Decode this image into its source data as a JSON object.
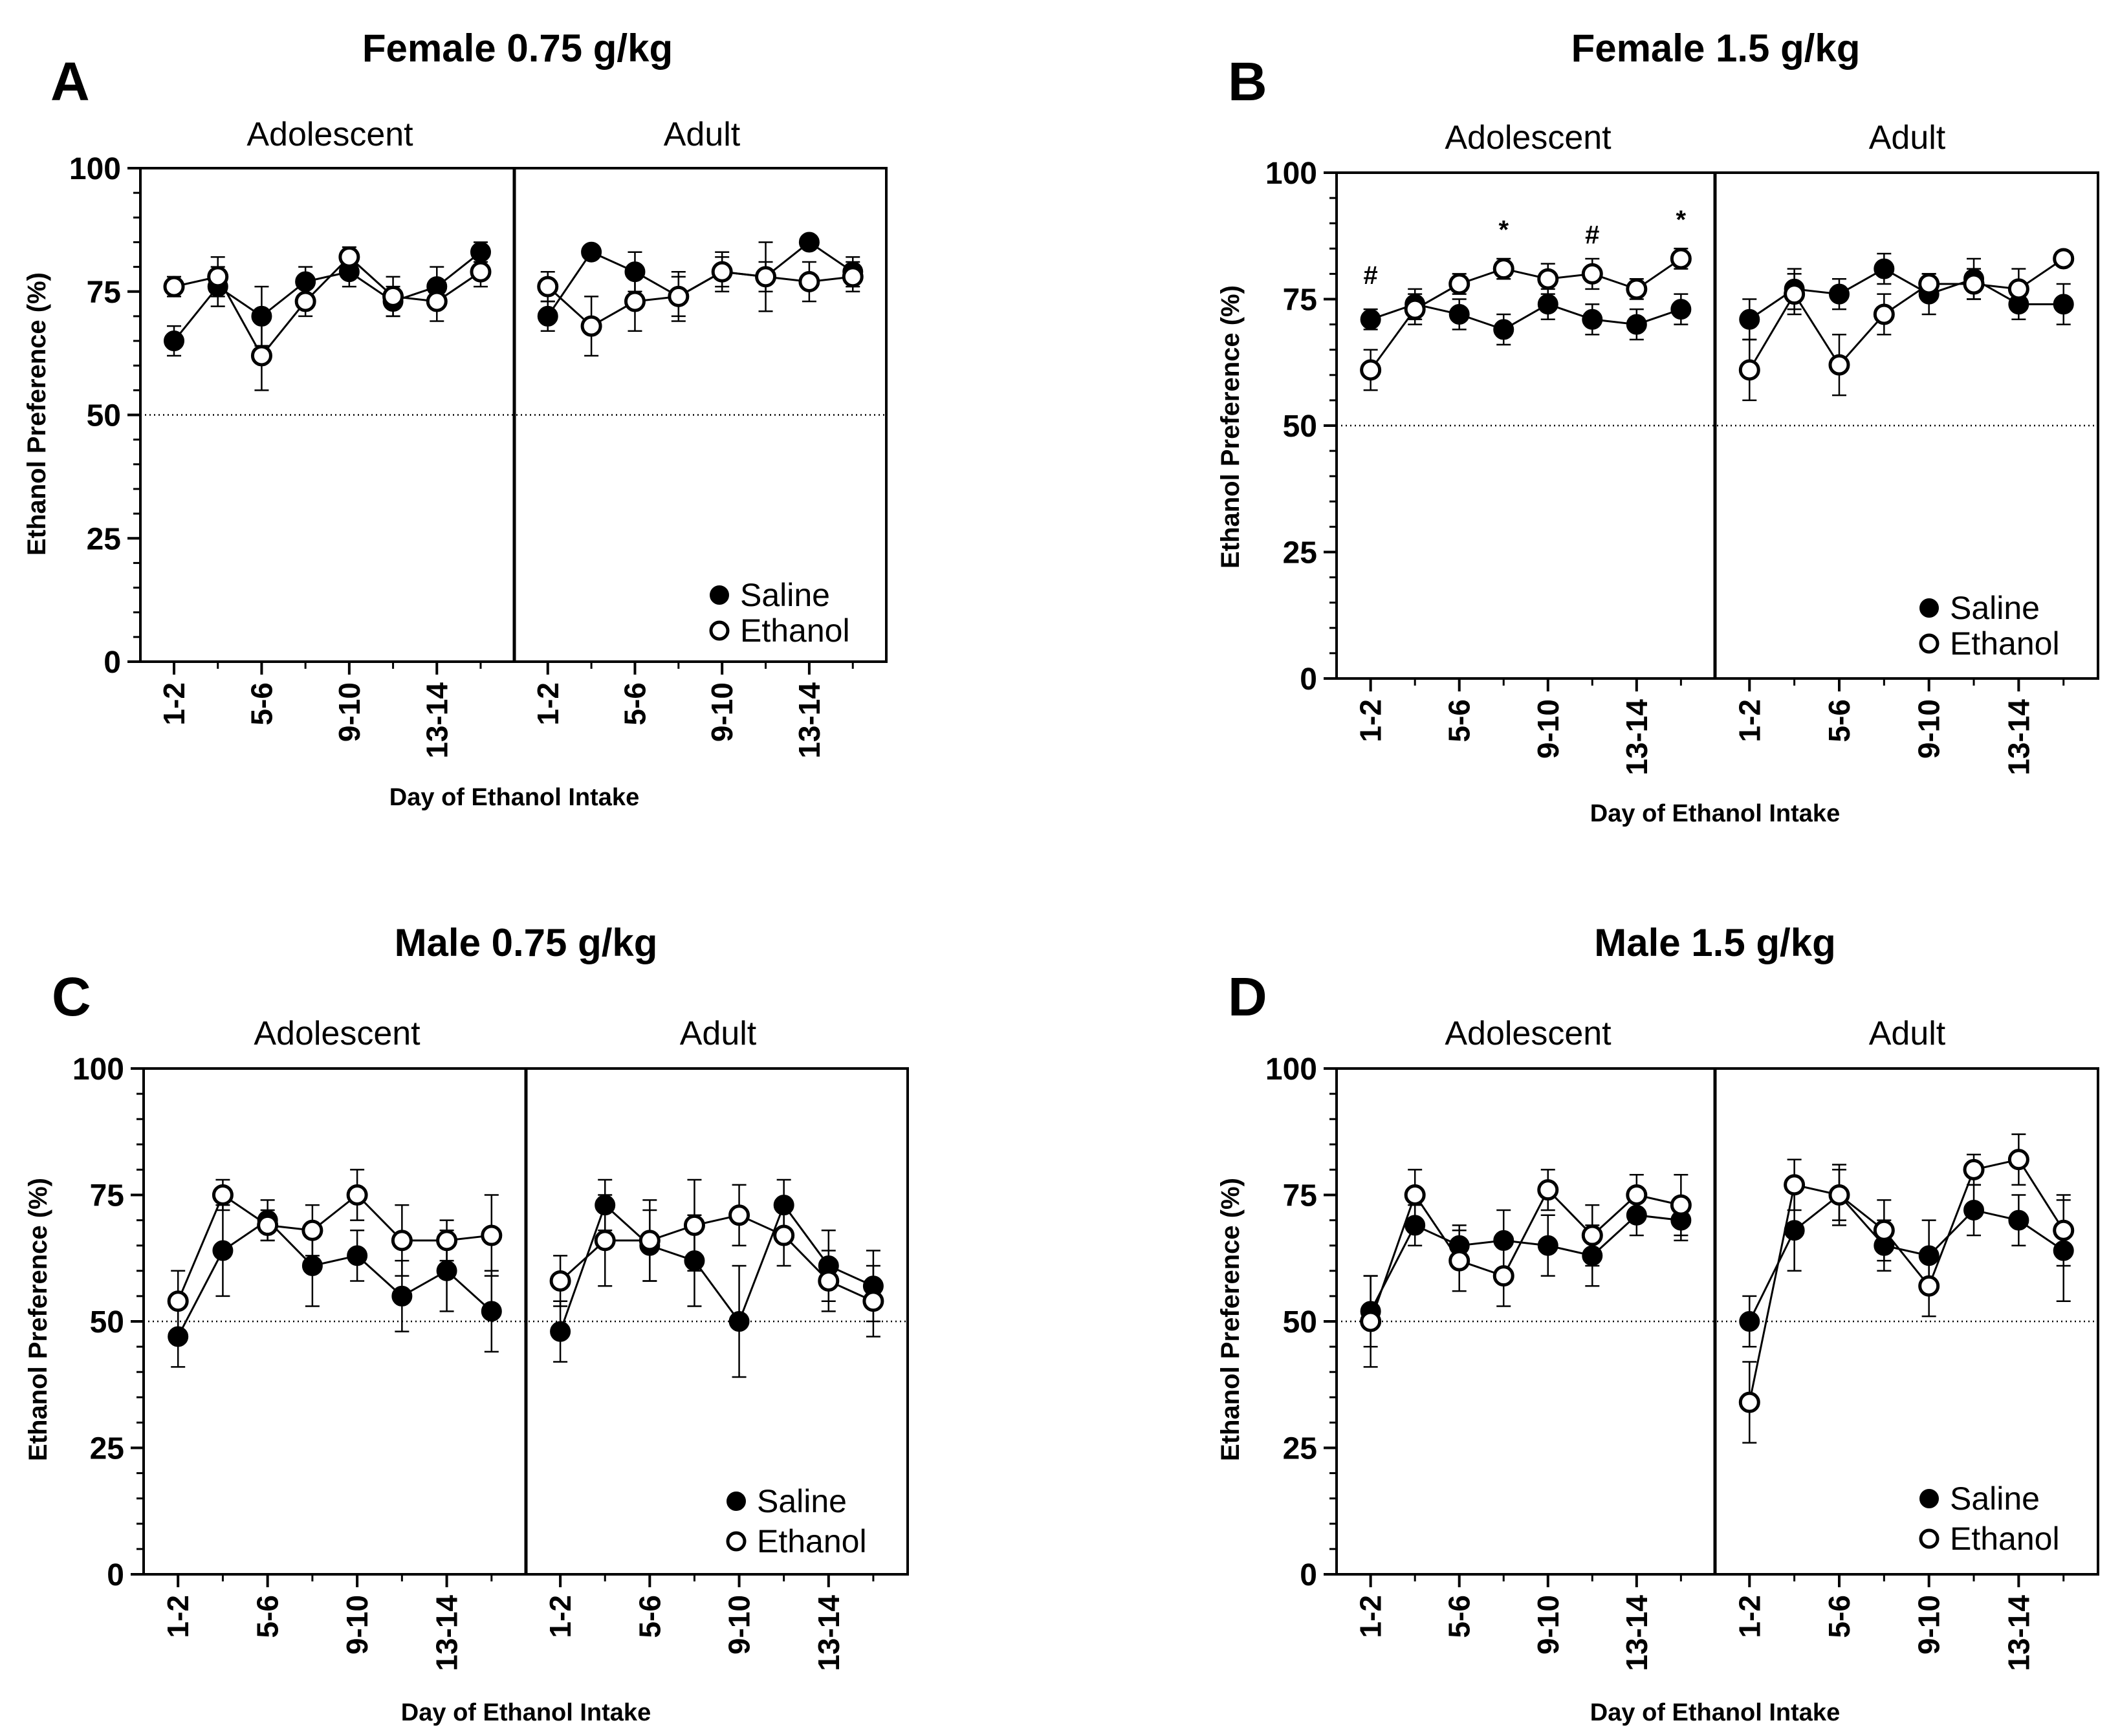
{
  "colors": {
    "ink": "#000000",
    "background": "#ffffff"
  },
  "chart_data": [
    {
      "type": "line",
      "panel_letter": "A",
      "title": "Female 0.75 g/kg",
      "xlabel": "Day of Ethanol Intake",
      "ylabel": "Ethanol Preference (%)",
      "ylim": [
        0,
        100
      ],
      "yticks": [
        "0",
        "25",
        "50",
        "75",
        "100"
      ],
      "reference_line": 50,
      "groups": [
        "Adolescent",
        "Adult"
      ],
      "xtick_labels": [
        "1-2",
        "5-6",
        "9-10",
        "13-14"
      ],
      "x": [
        1,
        2,
        3,
        4,
        5,
        6,
        7,
        8
      ],
      "legend": [
        "Saline",
        "Ethanol"
      ],
      "series": [
        {
          "name": "Saline",
          "group": "Adolescent",
          "values": [
            65,
            76,
            70,
            77,
            79,
            73,
            76,
            83
          ],
          "errors": [
            3,
            4,
            6,
            3,
            3,
            3,
            4,
            2
          ]
        },
        {
          "name": "Ethanol",
          "group": "Adolescent",
          "values": [
            76,
            78,
            62,
            73,
            82,
            74,
            73,
            79
          ],
          "errors": [
            2,
            4,
            7,
            3,
            2,
            4,
            4,
            3
          ]
        },
        {
          "name": "Saline",
          "group": "Adult",
          "values": [
            70,
            83,
            79,
            74,
            79,
            78,
            85,
            79
          ],
          "errors": [
            3,
            1,
            4,
            4,
            3,
            3,
            1,
            3
          ]
        },
        {
          "name": "Ethanol",
          "group": "Adult",
          "values": [
            76,
            68,
            73,
            74,
            79,
            78,
            77,
            78
          ],
          "errors": [
            3,
            6,
            6,
            5,
            4,
            7,
            4,
            3
          ]
        }
      ],
      "annotations": []
    },
    {
      "type": "line",
      "panel_letter": "B",
      "title": "Female 1.5 g/kg",
      "xlabel": "Day of Ethanol Intake",
      "ylabel": "Ethanol Preference (%)",
      "ylim": [
        0,
        100
      ],
      "yticks": [
        "0",
        "25",
        "50",
        "75",
        "100"
      ],
      "reference_line": 50,
      "groups": [
        "Adolescent",
        "Adult"
      ],
      "xtick_labels": [
        "1-2",
        "5-6",
        "9-10",
        "13-14"
      ],
      "x": [
        1,
        2,
        3,
        4,
        5,
        6,
        7,
        8
      ],
      "legend": [
        "Saline",
        "Ethanol"
      ],
      "series": [
        {
          "name": "Saline",
          "group": "Adolescent",
          "values": [
            71,
            74,
            72,
            69,
            74,
            71,
            70,
            73
          ],
          "errors": [
            2,
            3,
            3,
            3,
            3,
            3,
            3,
            3
          ]
        },
        {
          "name": "Ethanol",
          "group": "Adolescent",
          "values": [
            61,
            73,
            78,
            81,
            79,
            80,
            77,
            83
          ],
          "errors": [
            4,
            3,
            2,
            2,
            3,
            3,
            2,
            2
          ]
        },
        {
          "name": "Saline",
          "group": "Adult",
          "values": [
            71,
            77,
            76,
            81,
            76,
            79,
            74,
            74
          ],
          "errors": [
            4,
            4,
            3,
            3,
            4,
            4,
            3,
            4
          ]
        },
        {
          "name": "Ethanol",
          "group": "Adult",
          "values": [
            61,
            76,
            62,
            72,
            78,
            78,
            77,
            83
          ],
          "errors": [
            6,
            4,
            6,
            4,
            2,
            3,
            4,
            1
          ]
        }
      ],
      "annotations": [
        {
          "group": "Adolescent",
          "x": 1,
          "text": "#",
          "y": 78
        },
        {
          "group": "Adolescent",
          "x": 4,
          "text": "*",
          "y": 87
        },
        {
          "group": "Adolescent",
          "x": 6,
          "text": "#",
          "y": 86
        },
        {
          "group": "Adolescent",
          "x": 8,
          "text": "*",
          "y": 89
        }
      ]
    },
    {
      "type": "line",
      "panel_letter": "C",
      "title": "Male 0.75 g/kg",
      "xlabel": "Day of Ethanol Intake",
      "ylabel": "Ethanol Preference (%)",
      "ylim": [
        0,
        100
      ],
      "yticks": [
        "0",
        "25",
        "50",
        "75",
        "100"
      ],
      "reference_line": 50,
      "groups": [
        "Adolescent",
        "Adult"
      ],
      "xtick_labels": [
        "1-2",
        "5-6",
        "9-10",
        "13-14"
      ],
      "x": [
        1,
        2,
        3,
        4,
        5,
        6,
        7,
        8
      ],
      "legend": [
        "Saline",
        "Ethanol"
      ],
      "series": [
        {
          "name": "Saline",
          "group": "Adolescent",
          "values": [
            47,
            64,
            70,
            61,
            63,
            55,
            60,
            52
          ],
          "errors": [
            6,
            9,
            4,
            8,
            5,
            7,
            8,
            8
          ]
        },
        {
          "name": "Ethanol",
          "group": "Adolescent",
          "values": [
            54,
            75,
            69,
            68,
            75,
            66,
            66,
            67
          ],
          "errors": [
            6,
            3,
            3,
            5,
            5,
            7,
            4,
            8
          ]
        },
        {
          "name": "Saline",
          "group": "Adult",
          "values": [
            48,
            73,
            65,
            62,
            50,
            73,
            61,
            57
          ],
          "errors": [
            6,
            5,
            7,
            9,
            11,
            5,
            7,
            7
          ]
        },
        {
          "name": "Ethanol",
          "group": "Adult",
          "values": [
            58,
            66,
            66,
            69,
            71,
            67,
            58,
            54
          ],
          "errors": [
            5,
            9,
            8,
            9,
            6,
            6,
            6,
            7
          ]
        }
      ],
      "annotations": []
    },
    {
      "type": "line",
      "panel_letter": "D",
      "title": "Male 1.5 g/kg",
      "xlabel": "Day of Ethanol Intake",
      "ylabel": "Ethanol Preference (%)",
      "ylim": [
        0,
        100
      ],
      "yticks": [
        "0",
        "25",
        "50",
        "75",
        "100"
      ],
      "reference_line": 50,
      "groups": [
        "Adolescent",
        "Adult"
      ],
      "xtick_labels": [
        "1-2",
        "5-6",
        "9-10",
        "13-14"
      ],
      "x": [
        1,
        2,
        3,
        4,
        5,
        6,
        7,
        8
      ],
      "legend": [
        "Saline",
        "Ethanol"
      ],
      "series": [
        {
          "name": "Saline",
          "group": "Adolescent",
          "values": [
            52,
            69,
            65,
            66,
            65,
            63,
            71,
            70
          ],
          "errors": [
            7,
            4,
            4,
            6,
            6,
            6,
            4,
            4
          ]
        },
        {
          "name": "Ethanol",
          "group": "Adolescent",
          "values": [
            50,
            75,
            62,
            59,
            76,
            67,
            75,
            73
          ],
          "errors": [
            9,
            5,
            6,
            6,
            4,
            6,
            4,
            6
          ]
        },
        {
          "name": "Saline",
          "group": "Adult",
          "values": [
            50,
            68,
            75,
            65,
            63,
            72,
            70,
            64
          ],
          "errors": [
            5,
            8,
            6,
            5,
            7,
            5,
            5,
            10
          ]
        },
        {
          "name": "Ethanol",
          "group": "Adult",
          "values": [
            34,
            77,
            75,
            68,
            57,
            80,
            82,
            68
          ],
          "errors": [
            8,
            5,
            5,
            6,
            6,
            3,
            5,
            7
          ]
        }
      ],
      "annotations": []
    }
  ]
}
